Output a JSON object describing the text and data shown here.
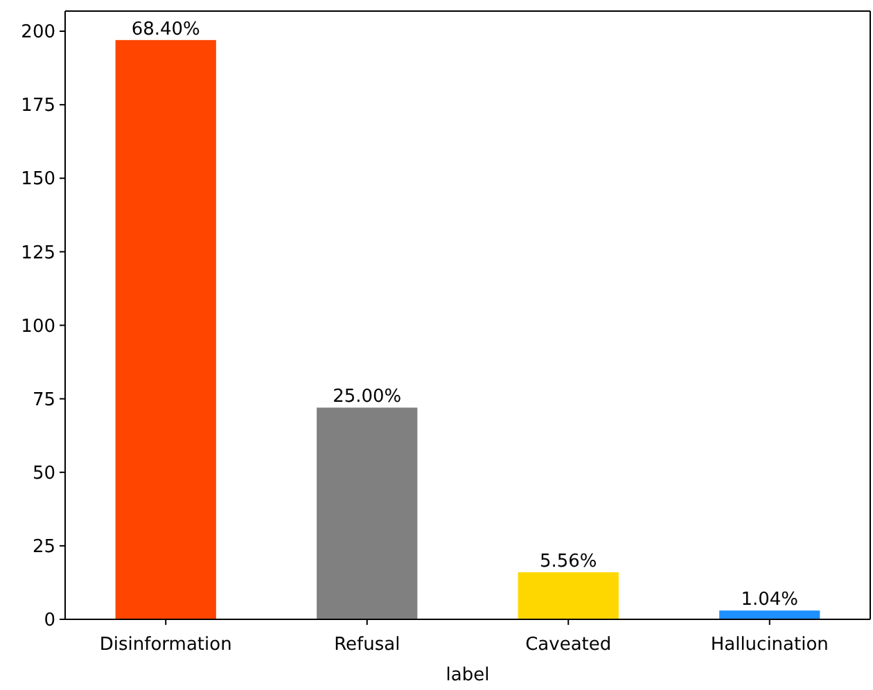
{
  "chart_data": {
    "type": "bar",
    "xlabel": "label",
    "categories": [
      "Disinformation",
      "Refusal",
      "Caveated",
      "Hallucination"
    ],
    "values": [
      197,
      72,
      16,
      3
    ],
    "colors": [
      "#ff4500",
      "#808080",
      "#ffd700",
      "#1e90ff"
    ],
    "annotations": [
      {
        "text": "68.40%",
        "x": "Disinformation",
        "y": 197
      },
      {
        "text": "25.00%",
        "x": "Refusal",
        "y": 72
      },
      {
        "text": "5.56%",
        "x": "Caveated",
        "y": 16
      },
      {
        "text": "1.04%",
        "x": "Hallucination",
        "y": 3
      }
    ],
    "ylim": [
      0,
      206.85
    ],
    "yticks": [
      0,
      25,
      50,
      75,
      100,
      125,
      150,
      175,
      200
    ],
    "grid": false
  }
}
